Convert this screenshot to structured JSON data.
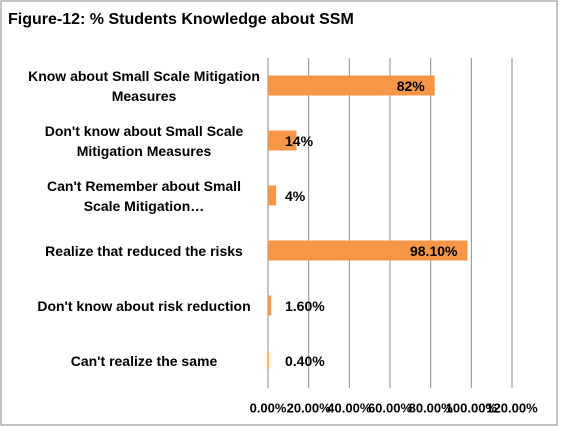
{
  "chart_data": {
    "type": "barh",
    "title": "Figure-12: % Students Knowledge about SSM",
    "categories": [
      "Know about Small Scale Mitigation Measures",
      "Don't know about Small Scale Mitigation Measures",
      "Can't Remember about Small Scale Mitigation…",
      "Realize that reduced the risks",
      "Don't know about risk reduction",
      "Can't realize the same"
    ],
    "values": [
      82,
      14,
      4,
      98.1,
      1.6,
      0.4
    ],
    "value_labels": [
      "82%",
      "14%",
      "4%",
      "98.10%",
      "1.60%",
      "0.40%"
    ],
    "color": "#f79646",
    "xlim": [
      0,
      120
    ],
    "xticks": [
      {
        "value": 0,
        "label": "0.00%"
      },
      {
        "value": 20,
        "label": "20.00%"
      },
      {
        "value": 40,
        "label": "40.00%"
      },
      {
        "value": 60,
        "label": "60.00%"
      },
      {
        "value": 80,
        "label": "80.00%"
      },
      {
        "value": 100,
        "label": "100.00%"
      },
      {
        "value": 120,
        "label": "120.00%"
      }
    ],
    "grid": true
  }
}
